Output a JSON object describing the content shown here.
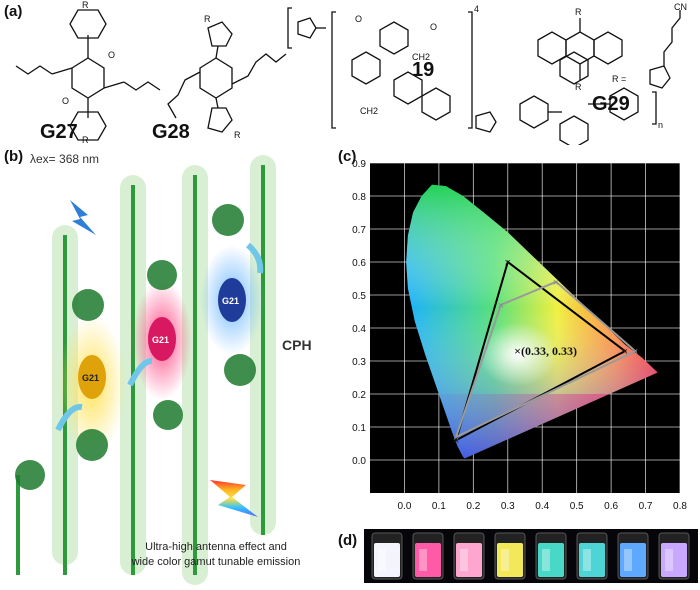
{
  "panels": {
    "a": {
      "label": "(a)",
      "structures": [
        "G27",
        "G28",
        "19",
        "G29"
      ],
      "r_label": "R",
      "r_group_label": "R =",
      "cn_label": "CN",
      "n_label": "n",
      "ch2_label": "CH2",
      "repeat_label": "4",
      "methoxy_label": "O"
    },
    "b": {
      "label": "(b)",
      "excitation": "λex= 368 nm",
      "guest_label": "G21",
      "host_label": "CPH",
      "caption_line1": "Ultra-high antenna effect and",
      "caption_line2": "wide color gamut tunable emission"
    },
    "c": {
      "label": "(c)",
      "white_point_label": "×(0.33, 0.33)",
      "colors": {
        "black_triangle": "#000000",
        "gray_triangle": "#9a9a9a",
        "grid": "#ffffff",
        "background": "#000000"
      }
    },
    "d": {
      "label": "(d)",
      "vial_colors": [
        "#f4f4ff",
        "#ff5aa8",
        "#ffa6d0",
        "#f2e85a",
        "#48d8c8",
        "#4fd4d6",
        "#5fa8ff",
        "#c9a8ff"
      ]
    }
  },
  "chart_data": {
    "type": "scatter",
    "title": "",
    "xlabel": "",
    "ylabel": "",
    "xlim": [
      -0.1,
      0.8
    ],
    "ylim": [
      -0.1,
      0.9
    ],
    "xticks": [
      "0.0",
      "0.1",
      "0.2",
      "0.3",
      "0.4",
      "0.5",
      "0.6",
      "0.7",
      "0.8"
    ],
    "yticks": [
      "0.0",
      "0.1",
      "0.2",
      "0.3",
      "0.4",
      "0.5",
      "0.6",
      "0.7",
      "0.8",
      "0.9"
    ],
    "grid": true,
    "series": [
      {
        "values": [
          [
            0.64,
            0.33
          ],
          [
            0.3,
            0.6
          ],
          [
            0.15,
            0.06
          ]
        ]
      },
      {
        "values": [
          [
            0.67,
            0.33
          ],
          [
            0.44,
            0.54
          ],
          [
            0.28,
            0.47
          ],
          [
            0.15,
            0.07
          ]
        ]
      }
    ],
    "white_point": [
      0.33,
      0.33
    ],
    "locus": [
      [
        0.175,
        0.005
      ],
      [
        0.17,
        0.01
      ],
      [
        0.165,
        0.02
      ],
      [
        0.155,
        0.04
      ],
      [
        0.14,
        0.08
      ],
      [
        0.12,
        0.14
      ],
      [
        0.09,
        0.23
      ],
      [
        0.06,
        0.32
      ],
      [
        0.03,
        0.42
      ],
      [
        0.01,
        0.52
      ],
      [
        0.005,
        0.6
      ],
      [
        0.01,
        0.68
      ],
      [
        0.025,
        0.75
      ],
      [
        0.05,
        0.8
      ],
      [
        0.08,
        0.834
      ],
      [
        0.12,
        0.83
      ],
      [
        0.17,
        0.8
      ],
      [
        0.23,
        0.75
      ],
      [
        0.3,
        0.69
      ],
      [
        0.37,
        0.62
      ],
      [
        0.44,
        0.55
      ],
      [
        0.51,
        0.48
      ],
      [
        0.58,
        0.41
      ],
      [
        0.64,
        0.35
      ],
      [
        0.69,
        0.31
      ],
      [
        0.735,
        0.265
      ]
    ]
  }
}
